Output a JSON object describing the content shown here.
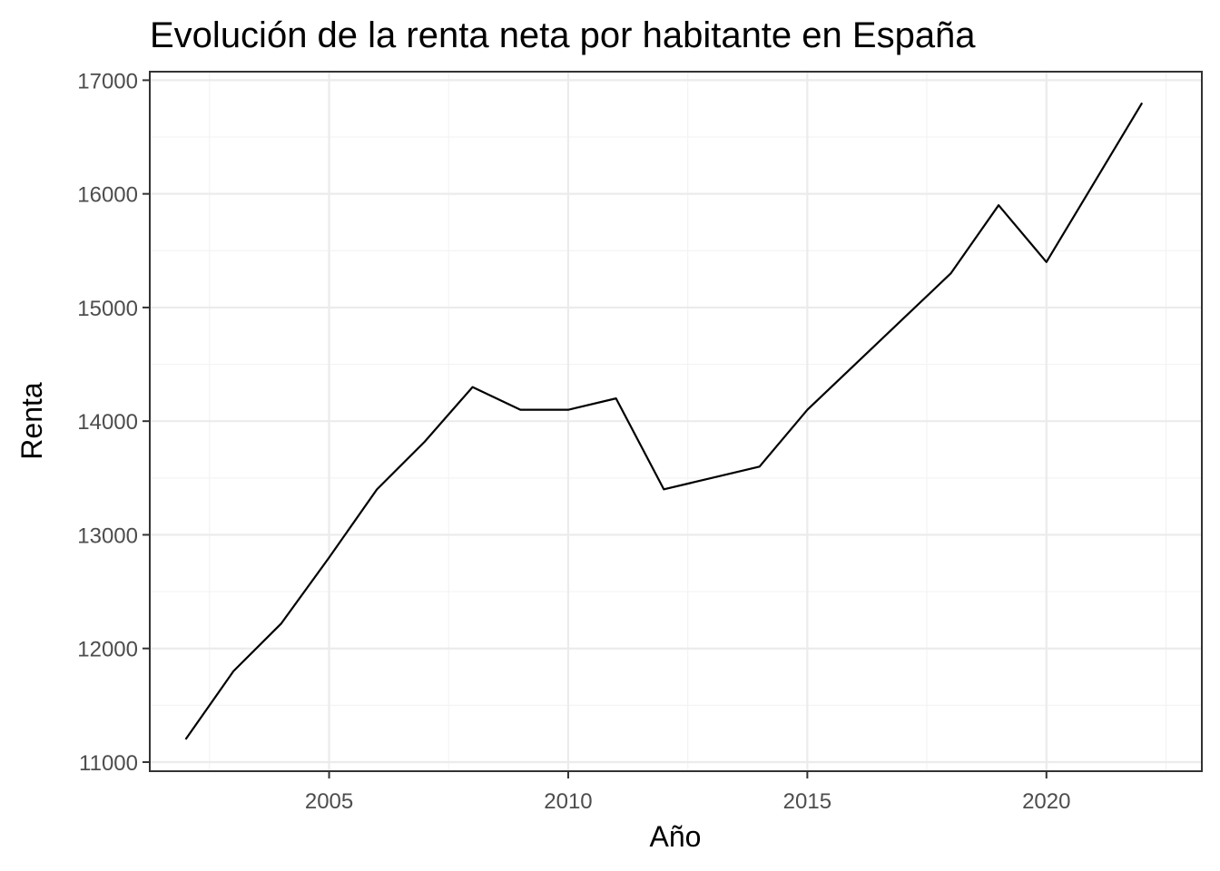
{
  "chart_data": {
    "type": "line",
    "title": "Evolución de la renta neta por habitante en España",
    "xlabel": "Año",
    "ylabel": "Renta",
    "xlim": [
      2001.25,
      2023.25
    ],
    "ylim": [
      10920,
      17075
    ],
    "x_ticks": [
      2005,
      2010,
      2015,
      2020
    ],
    "y_ticks": [
      11000,
      12000,
      13000,
      14000,
      15000,
      16000,
      17000
    ],
    "grid": true,
    "legend": "none",
    "series": [
      {
        "color": "#000000",
        "x": [
          2002,
          2003,
          2004,
          2005,
          2006,
          2007,
          2008,
          2009,
          2010,
          2011,
          2012,
          2013,
          2014,
          2015,
          2016,
          2017,
          2018,
          2019,
          2020,
          2021,
          2022
        ],
        "y": [
          11200,
          11800,
          12220,
          12800,
          13400,
          13820,
          14300,
          14100,
          14100,
          14200,
          13400,
          13500,
          13600,
          14100,
          14500,
          14900,
          15300,
          15900,
          15400,
          16100,
          16800
        ]
      }
    ]
  }
}
